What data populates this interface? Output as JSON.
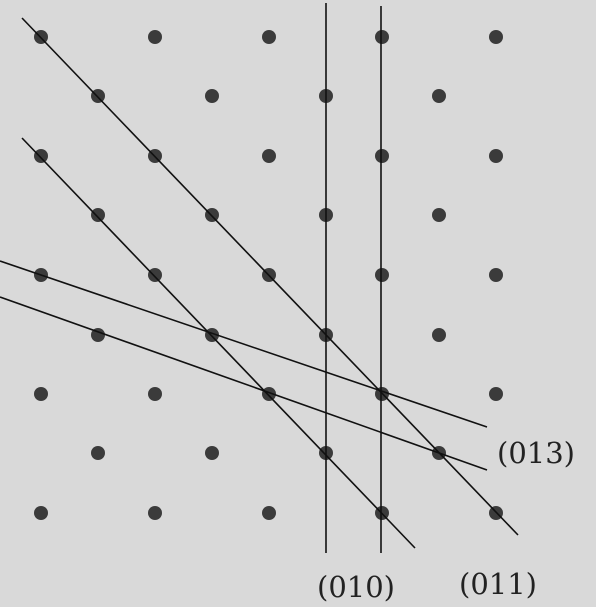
{
  "colors": {
    "background": "#d9d9d9",
    "lattice_point": "#3b3b3b",
    "plane_line": "#111111",
    "label_text": "#222222"
  },
  "labels": {
    "plane_013": "(013)",
    "plane_010": "(010)",
    "plane_011": "(011)"
  }
}
